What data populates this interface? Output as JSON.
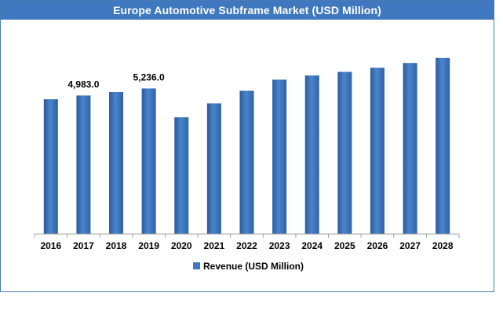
{
  "chart_data": {
    "type": "bar",
    "title": "Europe Automotive Subframe Market (USD Million)",
    "categories": [
      "2016",
      "2017",
      "2018",
      "2019",
      "2020",
      "2021",
      "2022",
      "2023",
      "2024",
      "2025",
      "2026",
      "2027",
      "2028"
    ],
    "series": [
      {
        "name": "Revenue (USD Million)",
        "values": [
          4850,
          4983,
          5110,
          5236,
          4200,
          4700,
          5150,
          5550,
          5700,
          5830,
          5980,
          6150,
          6330
        ],
        "data_labels": [
          "",
          "4,983.0",
          "",
          "5,236.0",
          "",
          "",
          "",
          "",
          "",
          "",
          "",
          "",
          ""
        ]
      }
    ],
    "ylim": [
      0,
      7200
    ],
    "grid": false,
    "legend_position": "bottom",
    "colors": {
      "bar": "#3f78be",
      "bar_dark": "#2c5b9a",
      "bar_light": "#5a8fd0",
      "title_bg": "#3f78be",
      "axis": "#999999"
    }
  }
}
